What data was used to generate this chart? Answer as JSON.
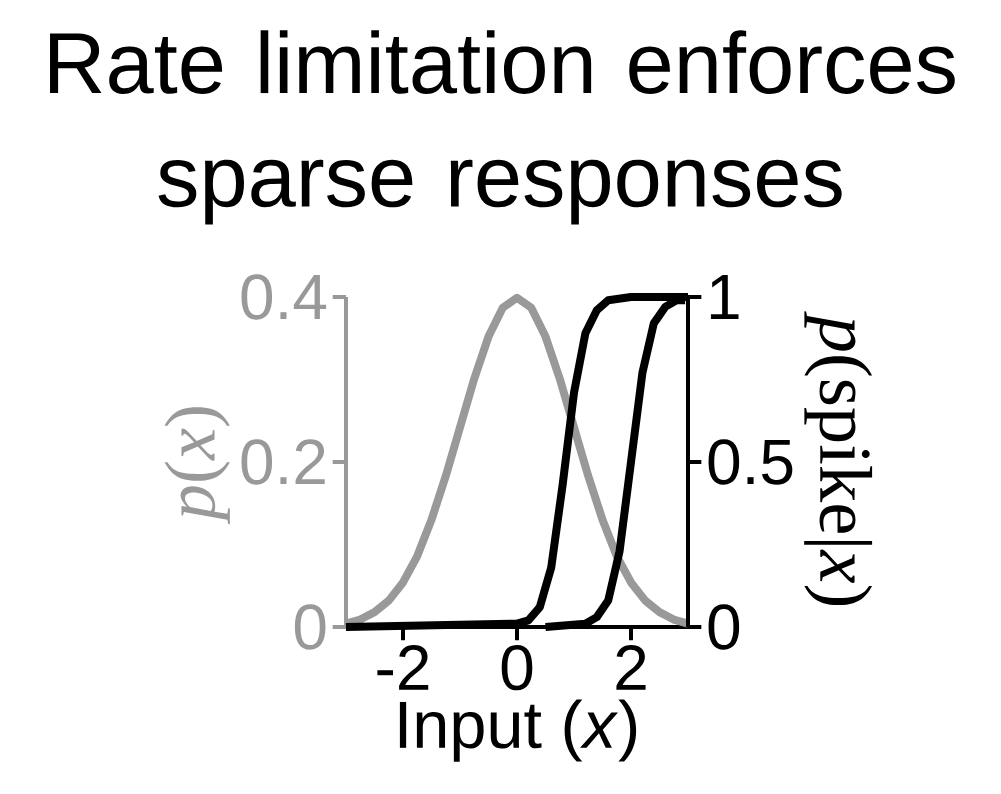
{
  "chart_data": {
    "type": "line",
    "title": "Rate limitation enforces sparse responses",
    "xlabel": "Input (*x*)",
    "ylabel": "*p*(*x*)",
    "y2label": "*p*(spike|*x*)",
    "xlim": [
      -3,
      3
    ],
    "xticks": [
      -2,
      0,
      2
    ],
    "ylim": [
      0,
      0.4
    ],
    "yticks": [
      0,
      0.2,
      0.4
    ],
    "y2lim": [
      0,
      1
    ],
    "y2ticks": [
      0,
      0.5,
      1
    ],
    "series": [
      {
        "color": "#999999",
        "x": [
          -3,
          -2.75,
          -2.5,
          -2.25,
          -2,
          -1.75,
          -1.5,
          -1.25,
          -1,
          -0.75,
          -0.5,
          -0.25,
          0,
          0.25,
          0.5,
          0.75,
          1,
          1.25,
          1.5,
          1.75,
          2,
          2.25,
          2.5,
          2.75,
          3
        ],
        "values": [
          0.004,
          0.009,
          0.018,
          0.032,
          0.054,
          0.086,
          0.13,
          0.183,
          0.242,
          0.301,
          0.352,
          0.387,
          0.399,
          0.387,
          0.352,
          0.301,
          0.242,
          0.183,
          0.13,
          0.086,
          0.054,
          0.032,
          0.018,
          0.009,
          0.004
        ]
      },
      {
        "color": "#000000",
        "axis": "y2",
        "x": [
          -3,
          0,
          0.2,
          0.4,
          0.6,
          0.8,
          1.0,
          1.2,
          1.4,
          1.6,
          2.0,
          3
        ],
        "values": [
          0,
          0.01,
          0.02,
          0.06,
          0.18,
          0.43,
          0.71,
          0.89,
          0.96,
          0.99,
          1,
          1
        ]
      },
      {
        "color": "#000000",
        "axis": "y2",
        "x": [
          0.5,
          1.2,
          1.4,
          1.6,
          1.8,
          2.0,
          2.2,
          2.4,
          2.6,
          2.8,
          2.95
        ],
        "values": [
          0,
          0.01,
          0.03,
          0.08,
          0.23,
          0.5,
          0.77,
          0.92,
          0.97,
          0.99,
          0.99
        ]
      }
    ]
  }
}
